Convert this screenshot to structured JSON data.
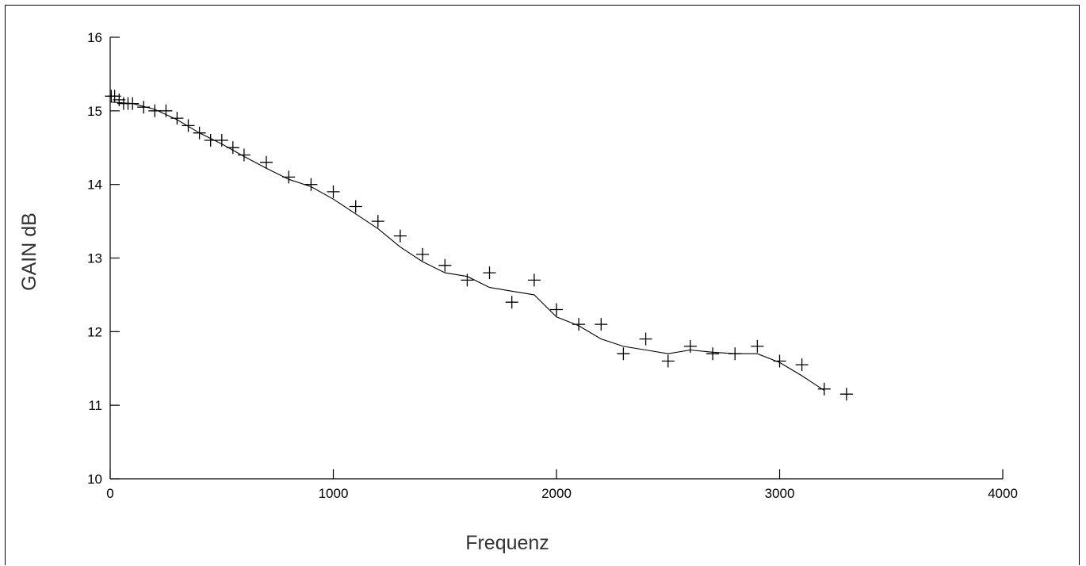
{
  "chart_data": {
    "type": "scatter",
    "xlabel": "Frequenz",
    "ylabel": "GAIN dB",
    "xlim": [
      0,
      4000
    ],
    "ylim": [
      10,
      16
    ],
    "x_ticks": [
      "0",
      "1000",
      "2000",
      "3000",
      "4000"
    ],
    "y_ticks": [
      "10",
      "11",
      "12",
      "13",
      "14",
      "15",
      "16"
    ],
    "grid": false,
    "series": [
      {
        "kind": "markers",
        "marker": "plus",
        "points": [
          [
            5,
            15.2
          ],
          [
            20,
            15.2
          ],
          [
            40,
            15.15
          ],
          [
            60,
            15.1
          ],
          [
            80,
            15.1
          ],
          [
            100,
            15.1
          ],
          [
            150,
            15.05
          ],
          [
            200,
            15.0
          ],
          [
            250,
            15.0
          ],
          [
            300,
            14.9
          ],
          [
            350,
            14.8
          ],
          [
            400,
            14.7
          ],
          [
            450,
            14.6
          ],
          [
            500,
            14.6
          ],
          [
            550,
            14.5
          ],
          [
            600,
            14.4
          ],
          [
            700,
            14.3
          ],
          [
            800,
            14.1
          ],
          [
            900,
            14.0
          ],
          [
            1000,
            13.9
          ],
          [
            1100,
            13.7
          ],
          [
            1200,
            13.5
          ],
          [
            1300,
            13.3
          ],
          [
            1400,
            13.05
          ],
          [
            1500,
            12.9
          ],
          [
            1600,
            12.7
          ],
          [
            1700,
            12.8
          ],
          [
            1800,
            12.4
          ],
          [
            1900,
            12.7
          ],
          [
            2000,
            12.3
          ],
          [
            2100,
            12.1
          ],
          [
            2200,
            12.1
          ],
          [
            2300,
            11.7
          ],
          [
            2400,
            11.9
          ],
          [
            2500,
            11.6
          ],
          [
            2600,
            11.8
          ],
          [
            2700,
            11.7
          ],
          [
            2800,
            11.7
          ],
          [
            2900,
            11.8
          ],
          [
            3000,
            11.6
          ],
          [
            3100,
            11.55
          ],
          [
            3200,
            11.22
          ],
          [
            3300,
            11.15
          ]
        ]
      },
      {
        "kind": "line",
        "points": [
          [
            0,
            15.12
          ],
          [
            100,
            15.1
          ],
          [
            200,
            15.02
          ],
          [
            300,
            14.88
          ],
          [
            400,
            14.7
          ],
          [
            500,
            14.55
          ],
          [
            600,
            14.38
          ],
          [
            700,
            14.22
          ],
          [
            800,
            14.07
          ],
          [
            900,
            13.97
          ],
          [
            1000,
            13.8
          ],
          [
            1100,
            13.6
          ],
          [
            1200,
            13.4
          ],
          [
            1300,
            13.15
          ],
          [
            1400,
            12.95
          ],
          [
            1500,
            12.8
          ],
          [
            1600,
            12.75
          ],
          [
            1700,
            12.6
          ],
          [
            1800,
            12.55
          ],
          [
            1900,
            12.5
          ],
          [
            2000,
            12.2
          ],
          [
            2100,
            12.08
          ],
          [
            2200,
            11.9
          ],
          [
            2300,
            11.8
          ],
          [
            2400,
            11.75
          ],
          [
            2500,
            11.7
          ],
          [
            2600,
            11.75
          ],
          [
            2700,
            11.72
          ],
          [
            2800,
            11.7
          ],
          [
            2900,
            11.7
          ],
          [
            3000,
            11.58
          ],
          [
            3100,
            11.4
          ],
          [
            3200,
            11.2
          ]
        ]
      }
    ]
  }
}
